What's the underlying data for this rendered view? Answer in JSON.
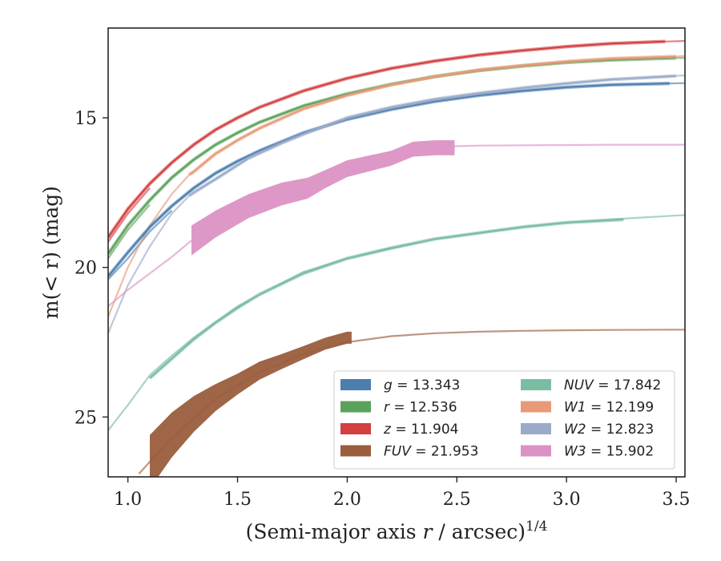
{
  "chart_data": {
    "type": "line",
    "xlabel": "(Semi-major axis r / arcsec)",
    "xlabel_italic": "r",
    "xlabel_exponent": "1/4",
    "ylabel": "m(< r) (mag)",
    "xlim": [
      0.91,
      3.54
    ],
    "ylim": [
      27.0,
      12.0
    ],
    "y_inverted": true,
    "x_ticks": [
      1.0,
      1.5,
      2.0,
      2.5,
      3.0,
      3.5
    ],
    "x_tick_labels": [
      "1.0",
      "1.5",
      "2.0",
      "2.5",
      "3.0",
      "3.5"
    ],
    "y_ticks": [
      15,
      20,
      25
    ],
    "y_tick_labels": [
      "15",
      "20",
      "25"
    ],
    "grid": false,
    "legend_position": "bottom-right",
    "series": [
      {
        "name": "g = 13.343",
        "band": "g",
        "value": "13.343",
        "color": "#4c7eaf",
        "kind": "line",
        "x": [
          0.91,
          1.0,
          1.1,
          1.2,
          1.3,
          1.4,
          1.5,
          1.6,
          1.8,
          2.0,
          2.2,
          2.4,
          2.6,
          2.8,
          3.0,
          3.2,
          3.47
        ],
        "y": [
          20.3,
          19.5,
          18.65,
          17.95,
          17.35,
          16.85,
          16.45,
          16.1,
          15.5,
          15.05,
          14.72,
          14.45,
          14.25,
          14.1,
          13.98,
          13.9,
          13.85
        ]
      },
      {
        "name": "r = 12.536",
        "band": "r",
        "value": "12.536",
        "color": "#5aa25a",
        "kind": "line",
        "x": [
          0.91,
          1.0,
          1.1,
          1.2,
          1.3,
          1.4,
          1.5,
          1.6,
          1.8,
          2.0,
          2.2,
          2.4,
          2.6,
          2.8,
          3.0,
          3.2,
          3.5
        ],
        "y": [
          19.55,
          18.6,
          17.75,
          17.0,
          16.4,
          15.9,
          15.5,
          15.15,
          14.6,
          14.2,
          13.88,
          13.62,
          13.42,
          13.27,
          13.15,
          13.07,
          13.0
        ]
      },
      {
        "name": "z = 11.904",
        "band": "z",
        "value": "11.904",
        "color": "#d43f3f",
        "kind": "line",
        "x": [
          0.91,
          1.0,
          1.1,
          1.2,
          1.3,
          1.4,
          1.5,
          1.6,
          1.8,
          2.0,
          2.2,
          2.4,
          2.6,
          2.8,
          3.0,
          3.2,
          3.45
        ],
        "y": [
          19.0,
          18.05,
          17.2,
          16.5,
          15.9,
          15.4,
          15.0,
          14.65,
          14.1,
          13.68,
          13.35,
          13.1,
          12.9,
          12.75,
          12.62,
          12.52,
          12.45
        ]
      },
      {
        "name": "FUV = 21.953",
        "band": "FUV",
        "value": "21.953",
        "color": "#9a5d3d",
        "kind": "band",
        "x": [
          1.1,
          1.2,
          1.3,
          1.4,
          1.5,
          1.6,
          1.7,
          1.8,
          1.9,
          2.0,
          2.02
        ],
        "y": [
          26.5,
          25.6,
          24.9,
          24.35,
          23.9,
          23.45,
          23.15,
          22.85,
          22.55,
          22.35,
          22.35
        ],
        "err": [
          0.9,
          0.75,
          0.6,
          0.45,
          0.35,
          0.3,
          0.25,
          0.22,
          0.2,
          0.2,
          0.2
        ]
      },
      {
        "name": "NUV = 17.842",
        "band": "NUV",
        "value": "17.842",
        "color": "#7bbda3",
        "kind": "line",
        "x": [
          1.1,
          1.2,
          1.3,
          1.4,
          1.5,
          1.6,
          1.8,
          2.0,
          2.2,
          2.4,
          2.6,
          2.8,
          3.0,
          3.26
        ],
        "y": [
          23.7,
          23.05,
          22.4,
          21.85,
          21.35,
          20.9,
          20.2,
          19.7,
          19.35,
          19.05,
          18.85,
          18.65,
          18.5,
          18.4
        ]
      },
      {
        "name": "W1 = 12.199",
        "band": "W1",
        "value": "12.199",
        "color": "#e89a78",
        "kind": "line",
        "x": [
          1.28,
          1.3,
          1.4,
          1.5,
          1.6,
          1.8,
          2.0,
          2.2,
          2.4,
          2.6,
          2.8,
          3.0,
          3.2,
          3.5
        ],
        "y": [
          16.9,
          16.8,
          16.2,
          15.75,
          15.35,
          14.7,
          14.25,
          13.9,
          13.62,
          13.4,
          13.25,
          13.12,
          13.02,
          12.95
        ]
      },
      {
        "name": "W2 = 12.823",
        "band": "W2",
        "value": "12.823",
        "color": "#9aabc9",
        "kind": "line",
        "x": [
          1.28,
          1.3,
          1.4,
          1.55,
          1.7,
          1.8,
          2.0,
          2.2,
          2.4,
          2.6,
          2.8,
          3.0,
          3.2,
          3.5
        ],
        "y": [
          17.6,
          17.5,
          17.05,
          16.35,
          15.85,
          15.55,
          15.0,
          14.65,
          14.38,
          14.18,
          14.0,
          13.85,
          13.72,
          13.6
        ]
      },
      {
        "name": "W3 = 15.902",
        "band": "W3",
        "value": "15.902",
        "color": "#db92c4",
        "kind": "band",
        "x": [
          1.29,
          1.4,
          1.55,
          1.7,
          1.82,
          1.9,
          2.0,
          2.2,
          2.3,
          2.4,
          2.49
        ],
        "y": [
          19.1,
          18.55,
          17.95,
          17.55,
          17.35,
          17.05,
          16.7,
          16.35,
          16.05,
          16.0,
          16.0
        ],
        "err": [
          0.5,
          0.45,
          0.4,
          0.38,
          0.35,
          0.3,
          0.28,
          0.25,
          0.25,
          0.25,
          0.25
        ]
      }
    ],
    "extrapolations": [
      {
        "band": "g",
        "color": "#4c7eaf",
        "x": [
          0.91,
          1.0,
          1.1,
          1.2
        ],
        "y": [
          20.4,
          19.7,
          18.8,
          18.1
        ]
      },
      {
        "band": "r",
        "color": "#5aa25a",
        "x": [
          0.91,
          1.0,
          1.1
        ],
        "y": [
          19.7,
          18.75,
          17.9
        ]
      },
      {
        "band": "z",
        "color": "#d43f3f",
        "x": [
          0.91,
          1.0,
          1.1
        ],
        "y": [
          19.15,
          18.2,
          17.35
        ]
      },
      {
        "band": "z",
        "color": "#d43f3f",
        "x": [
          3.45,
          3.54
        ],
        "y": [
          12.45,
          12.43
        ]
      },
      {
        "band": "g",
        "color": "#4c7eaf",
        "x": [
          3.47,
          3.54
        ],
        "y": [
          13.85,
          13.84
        ]
      },
      {
        "band": "r",
        "color": "#5aa25a",
        "x": [
          3.5,
          3.54
        ],
        "y": [
          13.0,
          13.0
        ]
      },
      {
        "band": "FUV",
        "color": "#9a5d3d",
        "x": [
          1.05,
          1.1,
          1.2,
          1.4,
          1.6,
          1.8,
          2.0,
          2.2,
          2.4,
          2.6,
          2.8,
          3.0,
          3.2,
          3.54
        ],
        "y": [
          26.9,
          26.5,
          25.7,
          24.4,
          23.5,
          22.9,
          22.5,
          22.3,
          22.2,
          22.15,
          22.12,
          22.1,
          22.09,
          22.08
        ]
      },
      {
        "band": "NUV",
        "color": "#7bbda3",
        "x": [
          0.91,
          1.0,
          1.1,
          1.2,
          1.3,
          1.5,
          1.8,
          2.0,
          2.4,
          2.8,
          3.0,
          3.3,
          3.54
        ],
        "y": [
          25.45,
          24.6,
          23.6,
          22.95,
          22.35,
          21.3,
          20.15,
          19.7,
          19.05,
          18.65,
          18.5,
          18.35,
          18.25
        ]
      },
      {
        "band": "W1",
        "color": "#e89a78",
        "x": [
          0.91,
          1.0,
          1.1,
          1.2,
          1.28
        ],
        "y": [
          21.65,
          20.0,
          18.6,
          17.55,
          16.9
        ]
      },
      {
        "band": "W1",
        "color": "#e89a78",
        "x": [
          3.5,
          3.54
        ],
        "y": [
          12.95,
          12.93
        ]
      },
      {
        "band": "W2",
        "color": "#9aabc9",
        "x": [
          0.91,
          1.0,
          1.1,
          1.2,
          1.28
        ],
        "y": [
          22.2,
          20.6,
          19.3,
          18.2,
          17.6
        ]
      },
      {
        "band": "W2",
        "color": "#9aabc9",
        "x": [
          3.5,
          3.54
        ],
        "y": [
          13.6,
          13.58
        ]
      },
      {
        "band": "W3",
        "color": "#db92c4",
        "x": [
          0.91,
          1.0,
          1.1,
          1.2,
          1.29
        ],
        "y": [
          21.3,
          20.75,
          20.2,
          19.65,
          19.1
        ]
      },
      {
        "band": "W3",
        "color": "#db92c4",
        "x": [
          2.49,
          2.6,
          2.8,
          3.0,
          3.2,
          3.54
        ],
        "y": [
          15.95,
          15.93,
          15.92,
          15.91,
          15.9,
          15.9
        ]
      }
    ],
    "legend_layout": [
      "g = 13.343",
      "r = 12.536",
      "z = 11.904",
      "FUV = 21.953",
      "NUV = 17.842",
      "W1 = 12.199",
      "W2 = 12.823",
      "W3 = 15.902"
    ]
  }
}
